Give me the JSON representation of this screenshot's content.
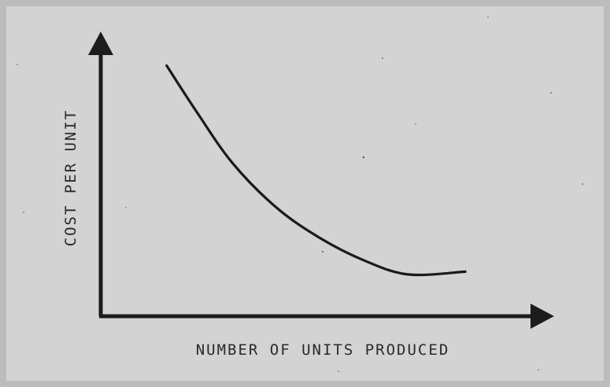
{
  "chart_data": {
    "type": "line",
    "title": "",
    "xlabel": "NUMBER OF UNITS PRODUCED",
    "ylabel": "COST PER UNIT",
    "xlim": [
      0,
      10
    ],
    "ylim": [
      0,
      10
    ],
    "grid": false,
    "legend": "none",
    "ticks": false,
    "series": [
      {
        "values": [
          {
            "x": 1.5,
            "y": 9.0
          },
          {
            "x": 2.2,
            "y": 7.3
          },
          {
            "x": 3.0,
            "y": 5.5
          },
          {
            "x": 4.0,
            "y": 3.9
          },
          {
            "x": 5.0,
            "y": 2.8
          },
          {
            "x": 6.0,
            "y": 2.0
          },
          {
            "x": 7.0,
            "y": 1.5
          },
          {
            "x": 8.3,
            "y": 1.6
          }
        ]
      }
    ],
    "colors": {
      "line": "#1a1a1a",
      "axis": "#1c1c1c",
      "background": "#d3d3d3",
      "frame": "#bcbcbc"
    }
  }
}
